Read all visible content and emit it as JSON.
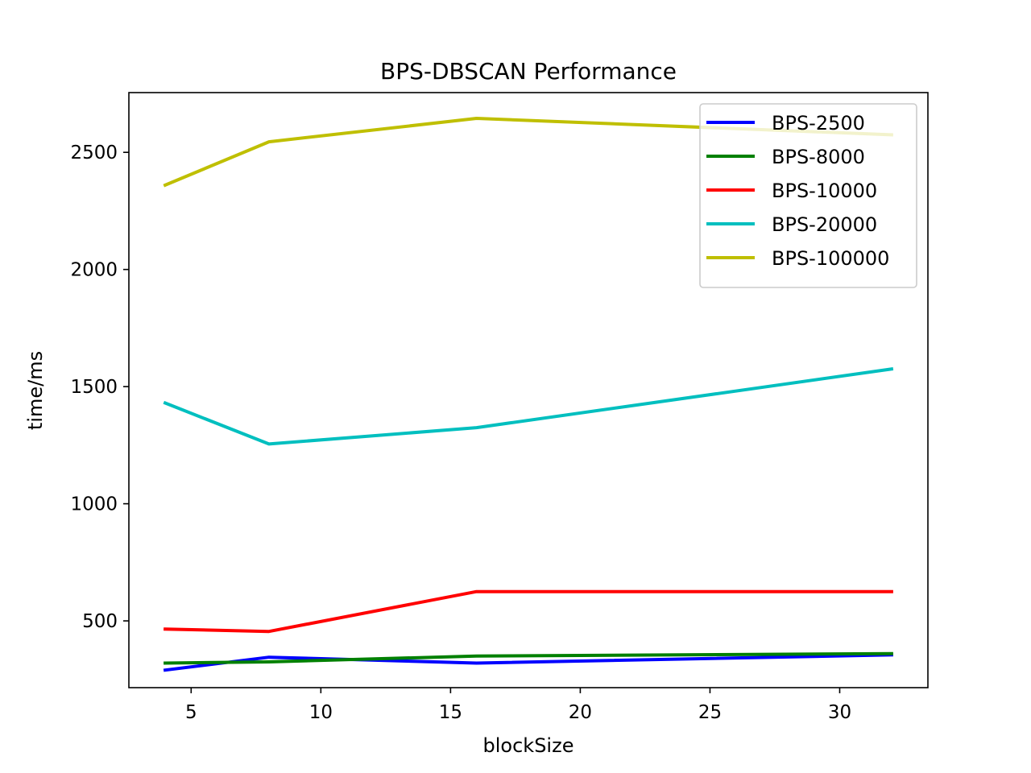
{
  "chart_data": {
    "type": "line",
    "title": "BPS-DBSCAN Performance",
    "xlabel": "blockSize",
    "ylabel": "time/ms",
    "x": [
      4,
      8,
      16,
      32
    ],
    "xlim": [
      2.6,
      33.4
    ],
    "ylim": [
      215,
      2755
    ],
    "xticks": [
      5,
      10,
      15,
      20,
      25,
      30
    ],
    "yticks": [
      500,
      1000,
      1500,
      2000,
      2500
    ],
    "grid": false,
    "legend_position": "top-right",
    "series": [
      {
        "name": "BPS-2500",
        "color": "#0000ff",
        "values": [
          290,
          345,
          320,
          355
        ]
      },
      {
        "name": "BPS-8000",
        "color": "#008000",
        "values": [
          320,
          325,
          350,
          360
        ]
      },
      {
        "name": "BPS-10000",
        "color": "#ff0000",
        "values": [
          465,
          455,
          625,
          625
        ]
      },
      {
        "name": "BPS-20000",
        "color": "#00bfbf",
        "values": [
          1430,
          1255,
          1325,
          1575
        ]
      },
      {
        "name": "BPS-100000",
        "color": "#bfbf00",
        "values": [
          2360,
          2545,
          2645,
          2575
        ]
      }
    ]
  }
}
